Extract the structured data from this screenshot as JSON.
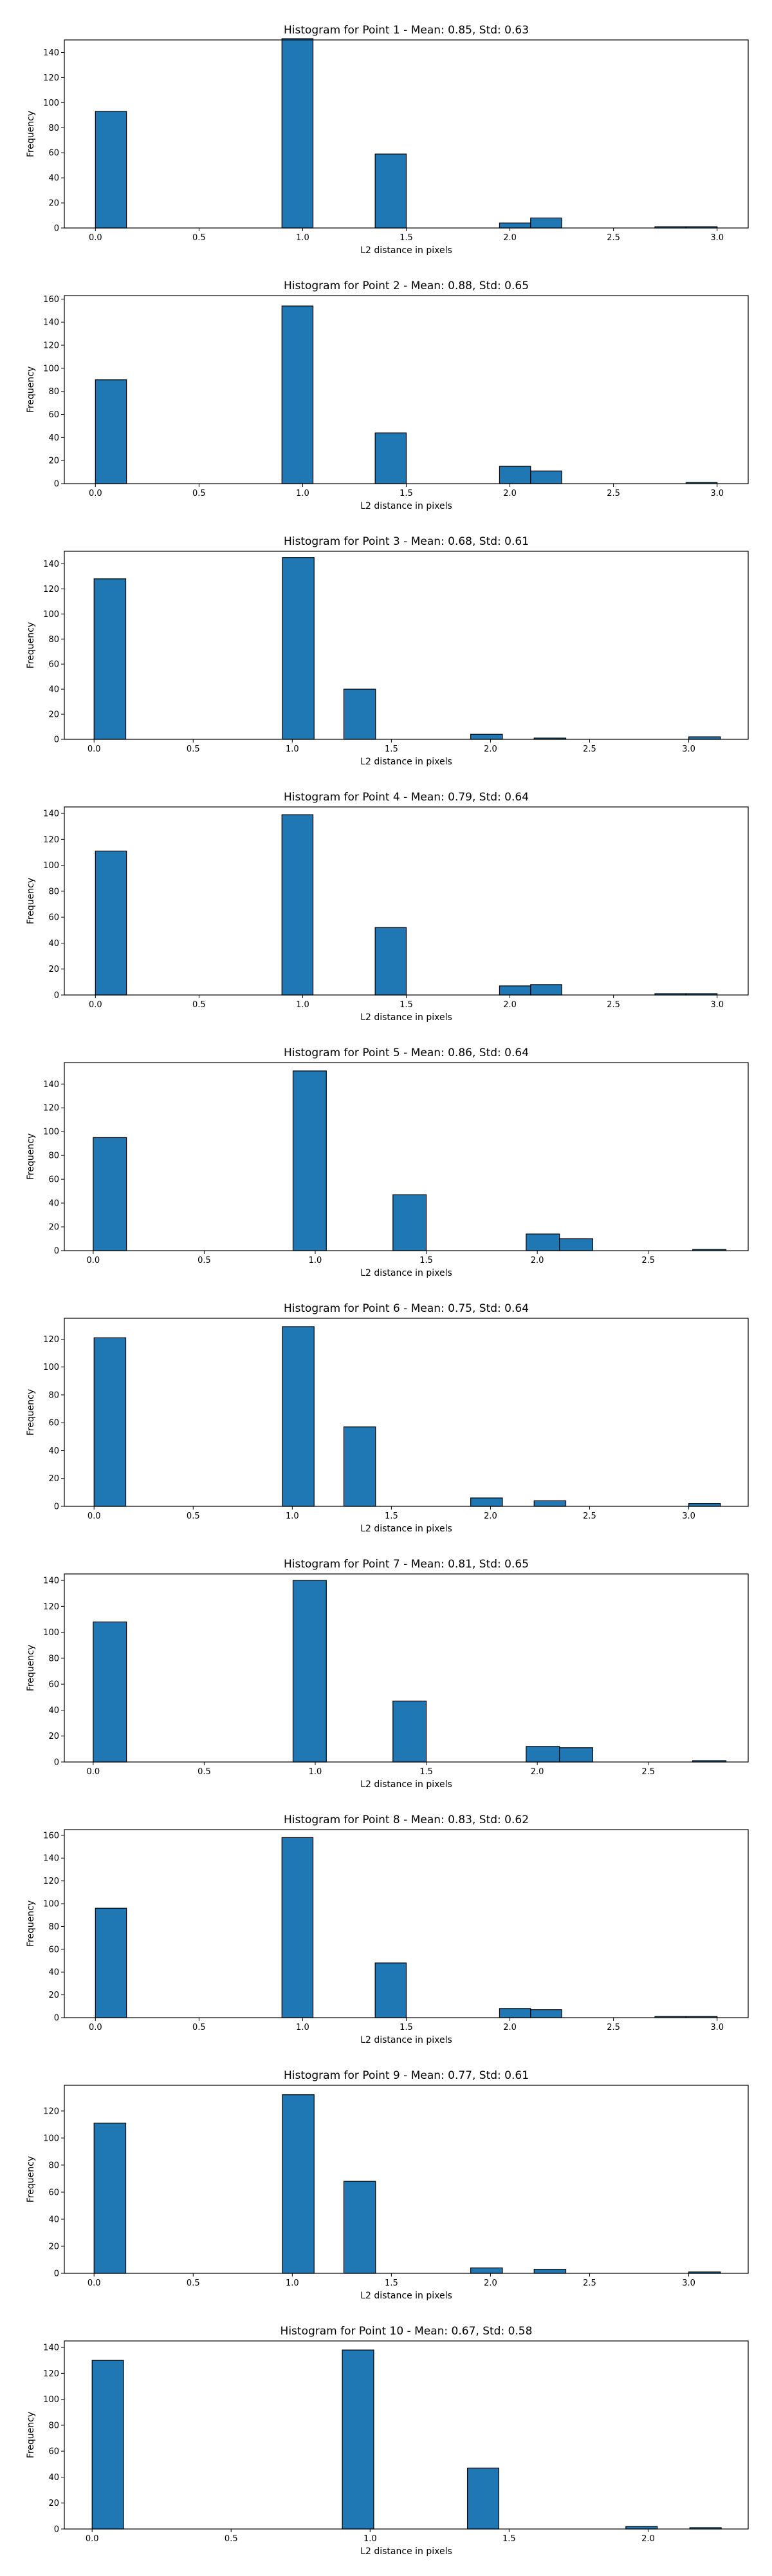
{
  "chart_data": [
    {
      "type": "bar",
      "title": "Histogram for Point 1 - Mean: 0.85, Std: 0.63",
      "xlabel": "L2 distance in pixels",
      "ylabel": "Frequency",
      "xlim": [
        -0.15,
        3.15
      ],
      "ylim": [
        0,
        150
      ],
      "xticks": [
        0.0,
        0.5,
        1.0,
        1.5,
        2.0,
        2.5,
        3.0
      ],
      "xtick_labels": [
        "0.0",
        "0.5",
        "1.0",
        "1.5",
        "2.0",
        "2.5",
        "3.0"
      ],
      "yticks": [
        0,
        20,
        40,
        60,
        80,
        100,
        120,
        140
      ],
      "bin_width": 0.15,
      "bins": [
        {
          "x": 0.0,
          "value": 93
        },
        {
          "x": 0.9,
          "value": 151
        },
        {
          "x": 1.35,
          "value": 59
        },
        {
          "x": 1.95,
          "value": 4
        },
        {
          "x": 2.1,
          "value": 8
        },
        {
          "x": 2.7,
          "value": 1
        },
        {
          "x": 2.85,
          "value": 1
        }
      ],
      "grid": false
    },
    {
      "type": "bar",
      "title": "Histogram for Point 2 - Mean: 0.88, Std: 0.65",
      "xlabel": "L2 distance in pixels",
      "ylabel": "Frequency",
      "xlim": [
        -0.15,
        3.15
      ],
      "ylim": [
        0,
        163
      ],
      "xticks": [
        0.0,
        0.5,
        1.0,
        1.5,
        2.0,
        2.5,
        3.0
      ],
      "xtick_labels": [
        "0.0",
        "0.5",
        "1.0",
        "1.5",
        "2.0",
        "2.5",
        "3.0"
      ],
      "yticks": [
        0,
        20,
        40,
        60,
        80,
        100,
        120,
        140,
        160
      ],
      "bin_width": 0.15,
      "bins": [
        {
          "x": 0.0,
          "value": 90
        },
        {
          "x": 0.9,
          "value": 154
        },
        {
          "x": 1.35,
          "value": 44
        },
        {
          "x": 1.95,
          "value": 15
        },
        {
          "x": 2.1,
          "value": 11
        },
        {
          "x": 2.85,
          "value": 1
        }
      ],
      "grid": false
    },
    {
      "type": "bar",
      "title": "Histogram for Point 3 - Mean: 0.68, Std: 0.61",
      "xlabel": "L2 distance in pixels",
      "ylabel": "Frequency",
      "xlim": [
        -0.15,
        3.3
      ],
      "ylim": [
        0,
        150
      ],
      "xticks": [
        0.0,
        0.5,
        1.0,
        1.5,
        2.0,
        2.5,
        3.0
      ],
      "xtick_labels": [
        "0.0",
        "0.5",
        "1.0",
        "1.5",
        "2.0",
        "2.5",
        "3.0"
      ],
      "yticks": [
        0,
        20,
        40,
        60,
        80,
        100,
        120,
        140
      ],
      "bin_width": 0.16,
      "bins": [
        {
          "x": 0.0,
          "value": 128
        },
        {
          "x": 0.95,
          "value": 145
        },
        {
          "x": 1.26,
          "value": 40
        },
        {
          "x": 1.9,
          "value": 4
        },
        {
          "x": 2.22,
          "value": 1
        },
        {
          "x": 3.0,
          "value": 2
        }
      ],
      "grid": false
    },
    {
      "type": "bar",
      "title": "Histogram for Point 4 - Mean: 0.79, Std: 0.64",
      "xlabel": "L2 distance in pixels",
      "ylabel": "Frequency",
      "xlim": [
        -0.15,
        3.15
      ],
      "ylim": [
        0,
        145
      ],
      "xticks": [
        0.0,
        0.5,
        1.0,
        1.5,
        2.0,
        2.5,
        3.0
      ],
      "xtick_labels": [
        "0.0",
        "0.5",
        "1.0",
        "1.5",
        "2.0",
        "2.5",
        "3.0"
      ],
      "yticks": [
        0,
        20,
        40,
        60,
        80,
        100,
        120,
        140
      ],
      "bin_width": 0.15,
      "bins": [
        {
          "x": 0.0,
          "value": 111
        },
        {
          "x": 0.9,
          "value": 139
        },
        {
          "x": 1.35,
          "value": 52
        },
        {
          "x": 1.95,
          "value": 7
        },
        {
          "x": 2.1,
          "value": 8
        },
        {
          "x": 2.7,
          "value": 1
        },
        {
          "x": 2.85,
          "value": 1
        }
      ],
      "grid": false
    },
    {
      "type": "bar",
      "title": "Histogram for Point 5 - Mean: 0.86, Std: 0.64",
      "xlabel": "L2 distance in pixels",
      "ylabel": "Frequency",
      "xlim": [
        -0.13,
        2.95
      ],
      "ylim": [
        0,
        158
      ],
      "xticks": [
        0.0,
        0.5,
        1.0,
        1.5,
        2.0,
        2.5
      ],
      "xtick_labels": [
        "0.0",
        "0.5",
        "1.0",
        "1.5",
        "2.0",
        "2.5"
      ],
      "yticks": [
        0,
        20,
        40,
        60,
        80,
        100,
        120,
        140
      ],
      "bin_width": 0.15,
      "bins": [
        {
          "x": 0.0,
          "value": 95
        },
        {
          "x": 0.9,
          "value": 151
        },
        {
          "x": 1.35,
          "value": 47
        },
        {
          "x": 1.95,
          "value": 14
        },
        {
          "x": 2.1,
          "value": 10
        },
        {
          "x": 2.7,
          "value": 1
        }
      ],
      "grid": false
    },
    {
      "type": "bar",
      "title": "Histogram for Point 6 - Mean: 0.75, Std: 0.64",
      "xlabel": "L2 distance in pixels",
      "ylabel": "Frequency",
      "xlim": [
        -0.15,
        3.3
      ],
      "ylim": [
        0,
        135
      ],
      "xticks": [
        0.0,
        0.5,
        1.0,
        1.5,
        2.0,
        2.5,
        3.0
      ],
      "xtick_labels": [
        "0.0",
        "0.5",
        "1.0",
        "1.5",
        "2.0",
        "2.5",
        "3.0"
      ],
      "yticks": [
        0,
        20,
        40,
        60,
        80,
        100,
        120
      ],
      "bin_width": 0.16,
      "bins": [
        {
          "x": 0.0,
          "value": 121
        },
        {
          "x": 0.95,
          "value": 129
        },
        {
          "x": 1.26,
          "value": 57
        },
        {
          "x": 1.9,
          "value": 6
        },
        {
          "x": 2.22,
          "value": 4
        },
        {
          "x": 3.0,
          "value": 2
        }
      ],
      "grid": false
    },
    {
      "type": "bar",
      "title": "Histogram for Point 7 - Mean: 0.81, Std: 0.65",
      "xlabel": "L2 distance in pixels",
      "ylabel": "Frequency",
      "xlim": [
        -0.13,
        2.95
      ],
      "ylim": [
        0,
        145
      ],
      "xticks": [
        0.0,
        0.5,
        1.0,
        1.5,
        2.0,
        2.5
      ],
      "xtick_labels": [
        "0.0",
        "0.5",
        "1.0",
        "1.5",
        "2.0",
        "2.5"
      ],
      "yticks": [
        0,
        20,
        40,
        60,
        80,
        100,
        120,
        140
      ],
      "bin_width": 0.15,
      "bins": [
        {
          "x": 0.0,
          "value": 108
        },
        {
          "x": 0.9,
          "value": 140
        },
        {
          "x": 1.35,
          "value": 47
        },
        {
          "x": 1.95,
          "value": 12
        },
        {
          "x": 2.1,
          "value": 11
        },
        {
          "x": 2.7,
          "value": 1
        }
      ],
      "grid": false
    },
    {
      "type": "bar",
      "title": "Histogram for Point 8 - Mean: 0.83, Std: 0.62",
      "xlabel": "L2 distance in pixels",
      "ylabel": "Frequency",
      "xlim": [
        -0.15,
        3.15
      ],
      "ylim": [
        0,
        165
      ],
      "xticks": [
        0.0,
        0.5,
        1.0,
        1.5,
        2.0,
        2.5,
        3.0
      ],
      "xtick_labels": [
        "0.0",
        "0.5",
        "1.0",
        "1.5",
        "2.0",
        "2.5",
        "3.0"
      ],
      "yticks": [
        0,
        20,
        40,
        60,
        80,
        100,
        120,
        140,
        160
      ],
      "bin_width": 0.15,
      "bins": [
        {
          "x": 0.0,
          "value": 96
        },
        {
          "x": 0.9,
          "value": 158
        },
        {
          "x": 1.35,
          "value": 48
        },
        {
          "x": 1.95,
          "value": 8
        },
        {
          "x": 2.1,
          "value": 7
        },
        {
          "x": 2.7,
          "value": 1
        },
        {
          "x": 2.85,
          "value": 1
        }
      ],
      "grid": false
    },
    {
      "type": "bar",
      "title": "Histogram for Point 9 - Mean: 0.77, Std: 0.61",
      "xlabel": "L2 distance in pixels",
      "ylabel": "Frequency",
      "xlim": [
        -0.15,
        3.3
      ],
      "ylim": [
        0,
        139
      ],
      "xticks": [
        0.0,
        0.5,
        1.0,
        1.5,
        2.0,
        2.5,
        3.0
      ],
      "xtick_labels": [
        "0.0",
        "0.5",
        "1.0",
        "1.5",
        "2.0",
        "2.5",
        "3.0"
      ],
      "yticks": [
        0,
        20,
        40,
        60,
        80,
        100,
        120
      ],
      "bin_width": 0.16,
      "bins": [
        {
          "x": 0.0,
          "value": 111
        },
        {
          "x": 0.95,
          "value": 132
        },
        {
          "x": 1.26,
          "value": 68
        },
        {
          "x": 1.9,
          "value": 4
        },
        {
          "x": 2.22,
          "value": 3
        },
        {
          "x": 3.0,
          "value": 1
        }
      ],
      "grid": false
    },
    {
      "type": "bar",
      "title": "Histogram for Point 10 - Mean: 0.67, Std: 0.58",
      "xlabel": "L2 distance in pixels",
      "ylabel": "Frequency",
      "xlim": [
        -0.1,
        2.36
      ],
      "ylim": [
        0,
        145
      ],
      "xticks": [
        0.0,
        0.5,
        1.0,
        1.5,
        2.0
      ],
      "xtick_labels": [
        "0.0",
        "0.5",
        "1.0",
        "1.5",
        "2.0"
      ],
      "yticks": [
        0,
        20,
        40,
        60,
        80,
        100,
        120,
        140
      ],
      "bin_width": 0.113,
      "bins": [
        {
          "x": 0.0,
          "value": 130
        },
        {
          "x": 0.9,
          "value": 138
        },
        {
          "x": 1.35,
          "value": 47
        },
        {
          "x": 1.92,
          "value": 2
        },
        {
          "x": 2.15,
          "value": 1
        }
      ],
      "grid": false
    }
  ]
}
